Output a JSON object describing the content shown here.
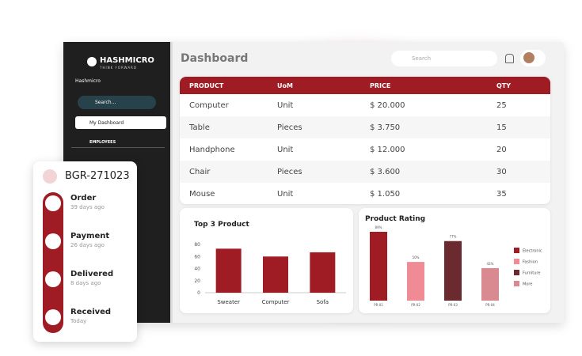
{
  "sidebar": {
    "brand": "HASHMICRO",
    "tagline": "THINK FORWARD",
    "company": "Hashmicro",
    "search": "Search...",
    "menu": [
      "My Dashboard",
      "EMPLOYEES"
    ]
  },
  "header": {
    "title": "Dashboard",
    "search": "Search"
  },
  "table": {
    "columns": [
      "PRODUCT",
      "UoM",
      "PRICE",
      "QTY"
    ],
    "rows": [
      [
        "Computer",
        "Unit",
        "$ 20.000",
        "25"
      ],
      [
        "Table",
        "Pieces",
        "$ 3.750",
        "15"
      ],
      [
        "Handphone",
        "Unit",
        "$ 12.000",
        "20"
      ],
      [
        "Chair",
        "Pieces",
        "$ 3.600",
        "30"
      ],
      [
        "Mouse",
        "Unit",
        "$ 1.050",
        "35"
      ]
    ]
  },
  "chart_data": [
    {
      "type": "bar",
      "title": "Top 3 Product",
      "categories": [
        "Sweater",
        "Computer",
        "Sofa"
      ],
      "values": [
        73,
        60,
        67
      ],
      "color": "#a01c25",
      "ylim": [
        0,
        80
      ],
      "yticks": [
        0,
        20,
        40,
        60,
        80
      ]
    },
    {
      "type": "rating",
      "title": "Product Rating",
      "categories": [
        "PR-01",
        "PR-02",
        "PR-03",
        "PR-04"
      ],
      "values": [
        89,
        50,
        77,
        42
      ],
      "value_labels": [
        "89%",
        "50%",
        "77%",
        "42%"
      ],
      "colors": [
        "#a01c25",
        "#f08a94",
        "#6b2a30",
        "#d98a90"
      ],
      "legend": [
        "Electronic",
        "Fashion",
        "Furniture",
        "More"
      ]
    }
  ],
  "order_card": {
    "id": "BGR-271023",
    "steps": [
      {
        "label": "Order",
        "time": "39 days ago"
      },
      {
        "label": "Payment",
        "time": "26 days ago"
      },
      {
        "label": "Delivered",
        "time": "8 days ago"
      },
      {
        "label": "Received",
        "time": "Today"
      }
    ]
  }
}
